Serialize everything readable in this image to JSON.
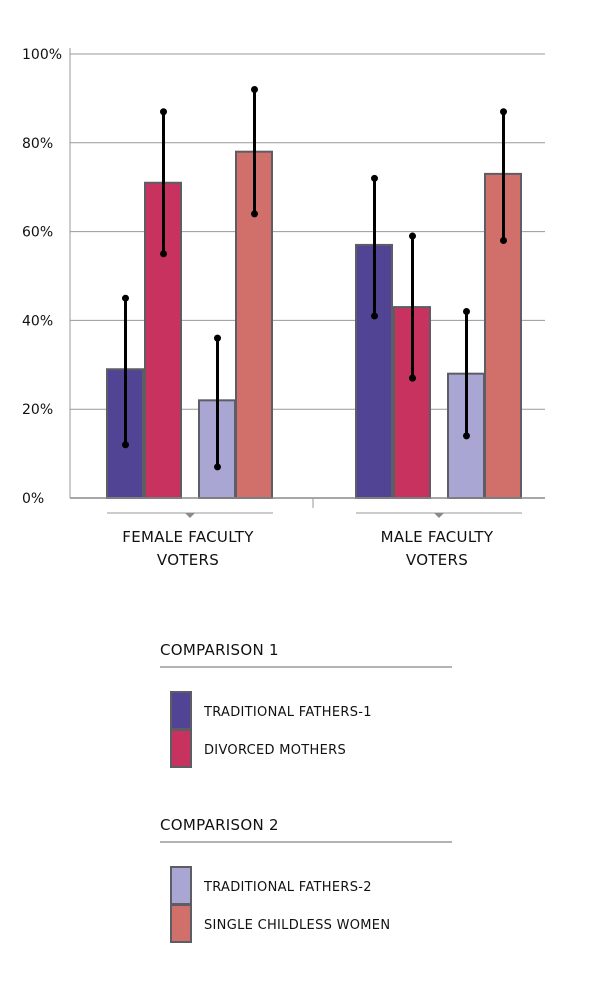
{
  "chart_data": {
    "type": "bar",
    "categories": [
      [
        "FEMALE FACULTY",
        "VOTERS"
      ],
      [
        "MALE FACULTY",
        "VOTERS"
      ]
    ],
    "y_tick_labels": [
      "0%",
      "20%",
      "40%",
      "60%",
      "80%",
      "100%"
    ],
    "ylim": [
      0,
      100
    ],
    "grid": true,
    "series": [
      {
        "name": "TRADITIONAL FATHERS-1",
        "color": "#514494",
        "values": [
          29,
          57
        ],
        "error_low": [
          12,
          41
        ],
        "error_high": [
          45,
          72
        ]
      },
      {
        "name": "DIVORCED MOTHERS",
        "color": "#c8325f",
        "values": [
          71,
          43
        ],
        "error_low": [
          55,
          27
        ],
        "error_high": [
          87,
          59
        ]
      },
      {
        "name": "TRADITIONAL FATHERS-2",
        "color": "#a9a6d3",
        "values": [
          22,
          28
        ],
        "error_low": [
          7,
          14
        ],
        "error_high": [
          36,
          42
        ]
      },
      {
        "name": "SINGLE CHILDLESS WOMEN",
        "color": "#d1706a",
        "values": [
          78,
          73
        ],
        "error_low": [
          64,
          58
        ],
        "error_high": [
          92,
          87
        ]
      }
    ],
    "legend": {
      "placement": "bottom",
      "groups": [
        {
          "title": "COMPARISON 1",
          "series": [
            0,
            1
          ]
        },
        {
          "title": "COMPARISON 2",
          "series": [
            2,
            3
          ]
        }
      ]
    }
  }
}
